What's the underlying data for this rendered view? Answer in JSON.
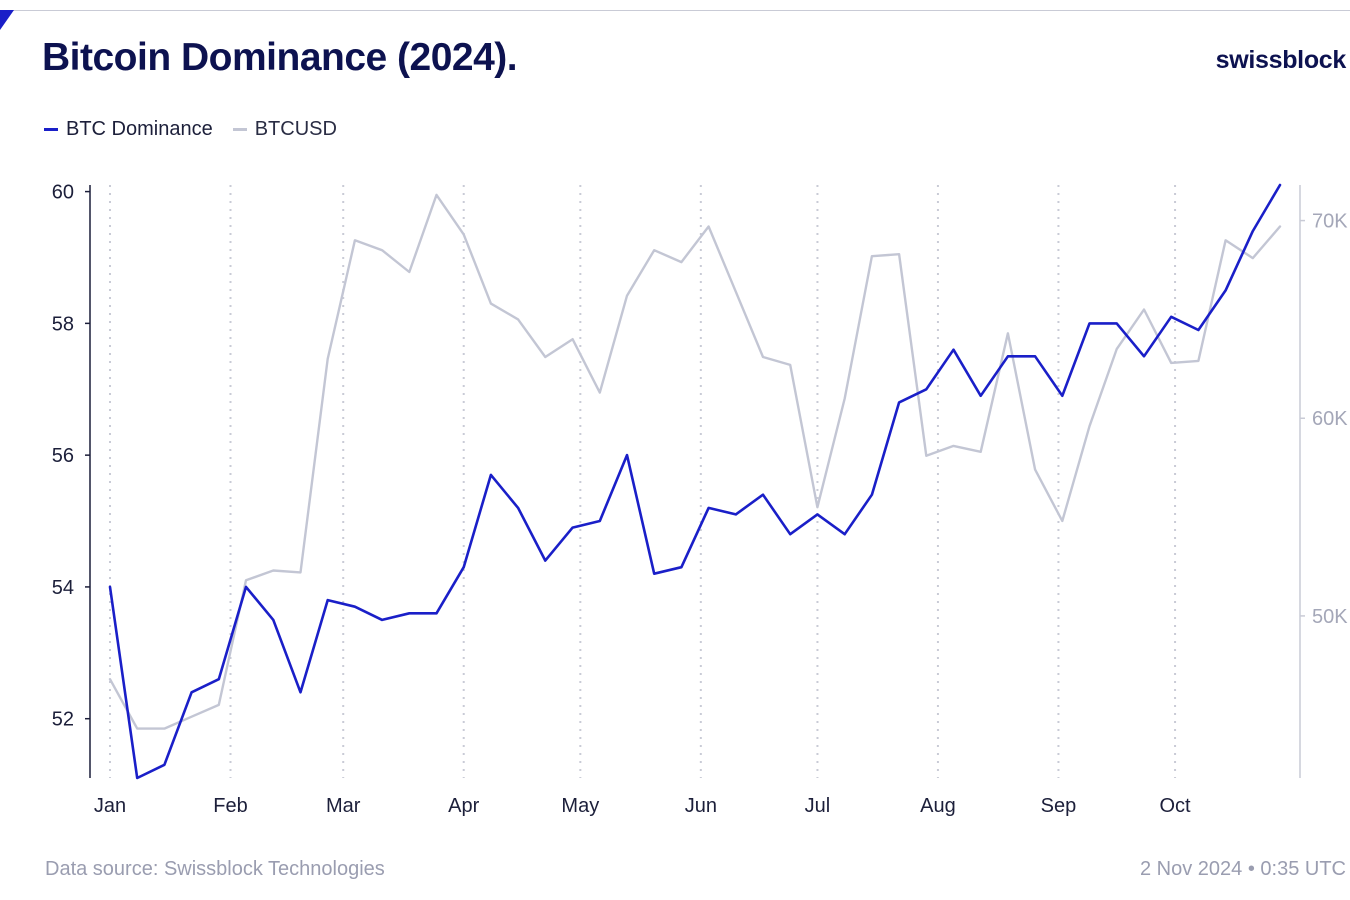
{
  "header": {
    "title": "Bitcoin Dominance (2024).",
    "brand": "swissblock"
  },
  "footer": {
    "source": "Data source: Swissblock Technologies",
    "timestamp": "2 Nov 2024 • 0:35 UTC"
  },
  "colors": {
    "dominance": "#1a1fc8",
    "btcusd": "#c3c6d4",
    "axis_text": "#1c1f3a",
    "right_axis_text": "#a4a7b8",
    "grid": "#c9cbd6"
  },
  "chart_data": {
    "type": "line",
    "title": "Bitcoin Dominance (2024).",
    "legend_position": "top-left",
    "grid": "vertical dotted lines at month starts",
    "x": [
      "2024-01-01",
      "2024-01-08",
      "2024-01-15",
      "2024-01-22",
      "2024-01-29",
      "2024-02-05",
      "2024-02-12",
      "2024-02-19",
      "2024-02-26",
      "2024-03-04",
      "2024-03-11",
      "2024-03-18",
      "2024-03-25",
      "2024-04-01",
      "2024-04-08",
      "2024-04-15",
      "2024-04-22",
      "2024-04-29",
      "2024-05-06",
      "2024-05-13",
      "2024-05-20",
      "2024-05-27",
      "2024-06-03",
      "2024-06-10",
      "2024-06-17",
      "2024-06-24",
      "2024-07-01",
      "2024-07-08",
      "2024-07-15",
      "2024-07-22",
      "2024-07-29",
      "2024-08-05",
      "2024-08-12",
      "2024-08-19",
      "2024-08-26",
      "2024-09-02",
      "2024-09-09",
      "2024-09-16",
      "2024-09-23",
      "2024-09-30",
      "2024-10-07",
      "2024-10-14",
      "2024-10-21",
      "2024-10-28"
    ],
    "month_ticks": [
      {
        "label": "Jan",
        "date": "2024-01-01"
      },
      {
        "label": "Feb",
        "date": "2024-02-01"
      },
      {
        "label": "Mar",
        "date": "2024-03-01"
      },
      {
        "label": "Apr",
        "date": "2024-04-01"
      },
      {
        "label": "May",
        "date": "2024-05-01"
      },
      {
        "label": "Jun",
        "date": "2024-06-01"
      },
      {
        "label": "Jul",
        "date": "2024-07-01"
      },
      {
        "label": "Aug",
        "date": "2024-08-01"
      },
      {
        "label": "Sep",
        "date": "2024-09-01"
      },
      {
        "label": "Oct",
        "date": "2024-10-01"
      }
    ],
    "left_axis": {
      "ticks": [
        52,
        54,
        56,
        58,
        60
      ],
      "ylim": [
        51.1,
        60.1
      ]
    },
    "right_axis": {
      "ticks": [
        50000,
        60000,
        70000
      ],
      "tick_labels": [
        "50K",
        "60K",
        "70K"
      ],
      "ylim": [
        41800,
        71800
      ]
    },
    "series": [
      {
        "name": "BTC Dominance",
        "axis": "left",
        "values": [
          54.0,
          51.1,
          51.3,
          52.4,
          52.6,
          54.0,
          53.5,
          52.4,
          53.8,
          53.7,
          53.5,
          53.6,
          53.6,
          54.3,
          55.7,
          55.2,
          54.4,
          54.9,
          55.0,
          56.0,
          54.2,
          54.3,
          55.2,
          55.1,
          55.4,
          54.8,
          55.1,
          54.8,
          55.4,
          56.8,
          57.0,
          57.6,
          56.9,
          57.5,
          57.5,
          56.9,
          58.0,
          58.0,
          57.5,
          58.1,
          57.9,
          58.5,
          59.4,
          60.1
        ]
      },
      {
        "name": "BTCUSD",
        "axis": "right",
        "values": [
          46800,
          44300,
          44300,
          44900,
          45500,
          51800,
          52300,
          52200,
          63000,
          69000,
          68500,
          67400,
          71300,
          69300,
          65800,
          65000,
          63100,
          64000,
          61300,
          66200,
          68500,
          67900,
          69700,
          66400,
          63100,
          62700,
          55500,
          61000,
          68200,
          68300,
          58100,
          58600,
          58300,
          64300,
          57400,
          54800,
          59600,
          63500,
          65500,
          62800,
          62900,
          69000,
          68100,
          69700
        ]
      }
    ]
  }
}
